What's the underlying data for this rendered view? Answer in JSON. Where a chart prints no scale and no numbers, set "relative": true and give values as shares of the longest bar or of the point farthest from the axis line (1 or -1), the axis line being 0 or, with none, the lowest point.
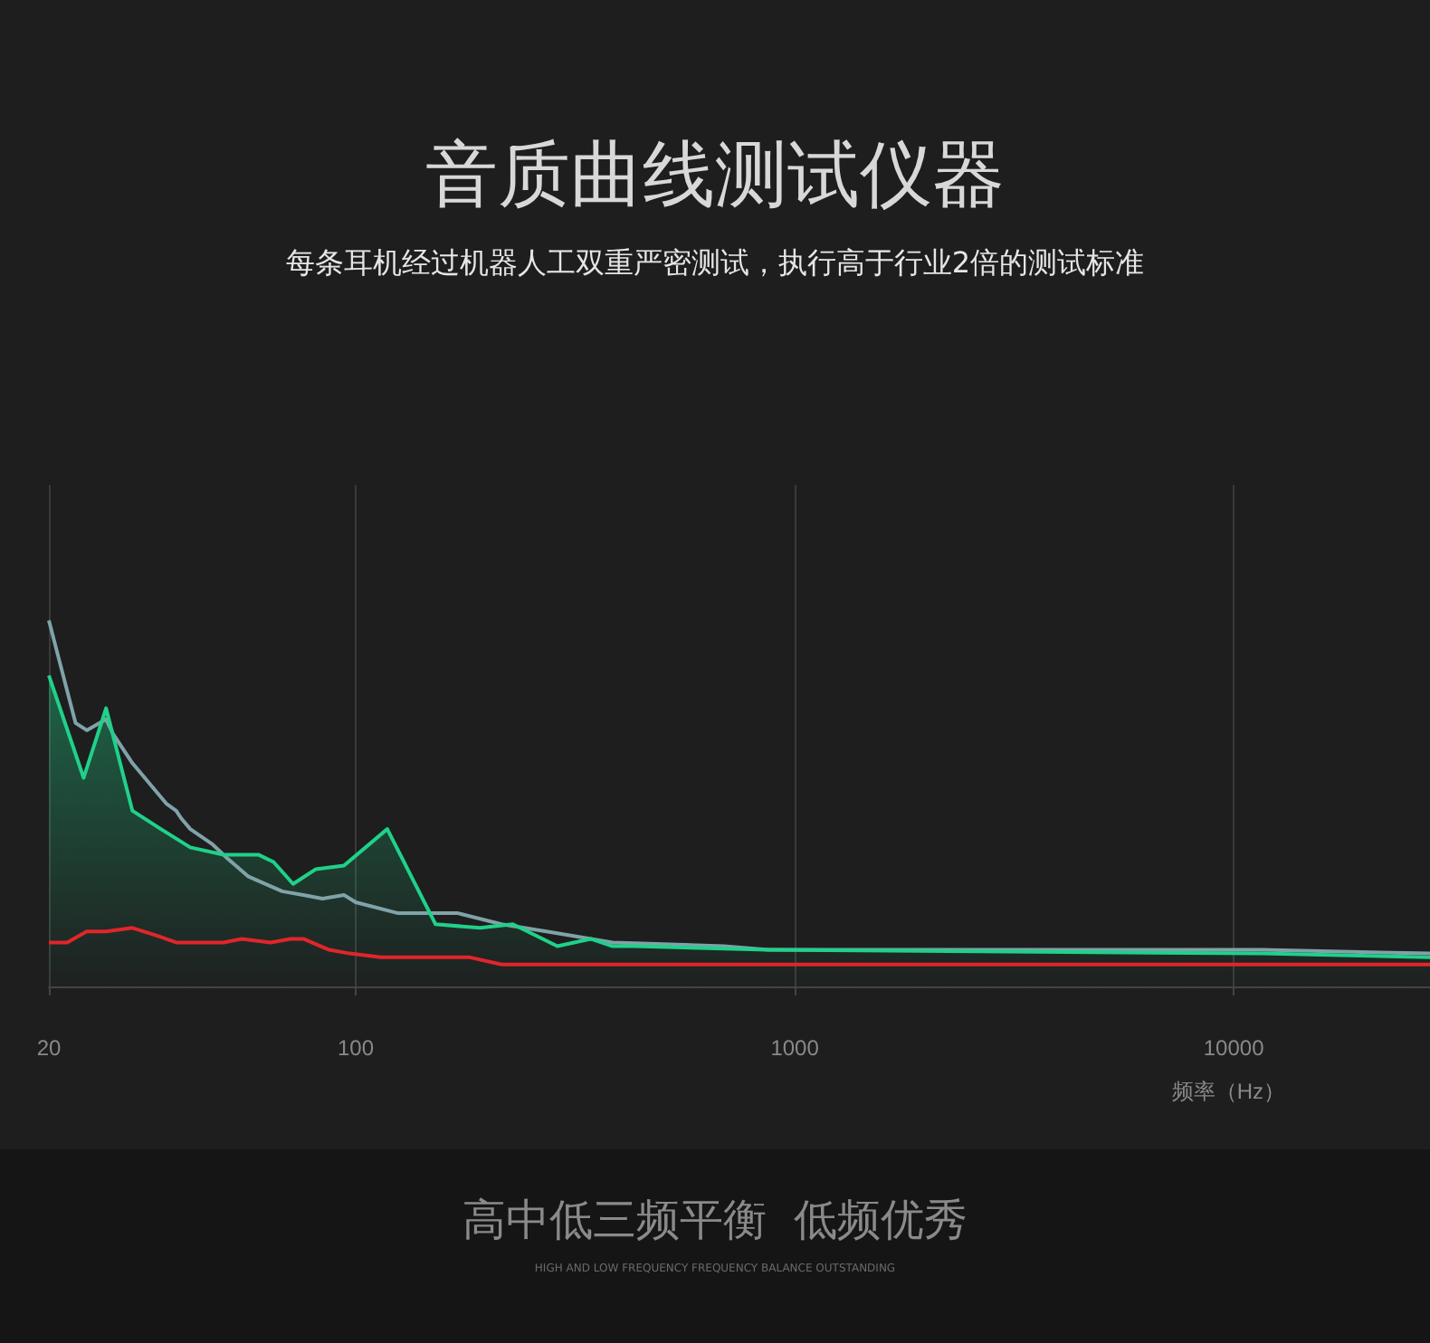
{
  "chart_data": {
    "type": "line",
    "title": "音质曲线测试仪器",
    "subtitle": "每条耳机经过机器人工双重严密测试，执行高于行业2倍的测试标准",
    "xlabel": "频率（Hz）",
    "relative": true,
    "log": "x",
    "xlim": [
      20,
      28000
    ],
    "xticks": [
      20,
      100,
      1000,
      10000
    ],
    "grid": "x",
    "marker": "none",
    "line_style": "solid",
    "annotations": [
      "高中低三频平衡  低频优秀",
      "HIGH AND LOW FREQUENCY FREQUENCY BALANCE OUTSTANDING"
    ],
    "series": [
      {
        "color": "#7fa3a8",
        "x": [
          20,
          23,
          24.4,
          27,
          28,
          31,
          37,
          39,
          40,
          42,
          47,
          51,
          57,
          68,
          76,
          84,
          94,
          100,
          125,
          171,
          215,
          272,
          385,
          689,
          869,
          11600,
          28000
        ],
        "values": [
          1.0,
          0.72,
          0.7,
          0.73,
          0.69,
          0.61,
          0.5,
          0.48,
          0.46,
          0.43,
          0.39,
          0.35,
          0.3,
          0.26,
          0.25,
          0.24,
          0.25,
          0.23,
          0.2,
          0.2,
          0.17,
          0.15,
          0.12,
          0.11,
          0.1,
          0.1,
          0.09
        ]
      },
      {
        "type": "area",
        "color": "#1fd18a",
        "x": [
          20,
          24,
          27,
          31,
          36,
          42,
          50,
          60,
          65,
          72,
          81,
          94,
          118,
          152,
          192,
          228,
          288,
          343,
          385,
          433,
          869,
          11600,
          28000
        ],
        "values": [
          0.85,
          0.57,
          0.76,
          0.48,
          0.43,
          0.38,
          0.36,
          0.36,
          0.34,
          0.28,
          0.32,
          0.33,
          0.43,
          0.17,
          0.16,
          0.17,
          0.11,
          0.13,
          0.11,
          0.11,
          0.1,
          0.09,
          0.08
        ]
      },
      {
        "color": "#e0262b",
        "x": [
          20,
          22,
          24.4,
          27,
          31,
          35,
          39,
          50,
          55,
          64,
          71,
          76,
          87,
          97,
          114,
          181,
          215,
          546,
          28000
        ],
        "values": [
          0.12,
          0.12,
          0.15,
          0.15,
          0.16,
          0.14,
          0.12,
          0.12,
          0.13,
          0.12,
          0.13,
          0.13,
          0.1,
          0.09,
          0.08,
          0.08,
          0.06,
          0.06,
          0.06
        ]
      }
    ]
  }
}
